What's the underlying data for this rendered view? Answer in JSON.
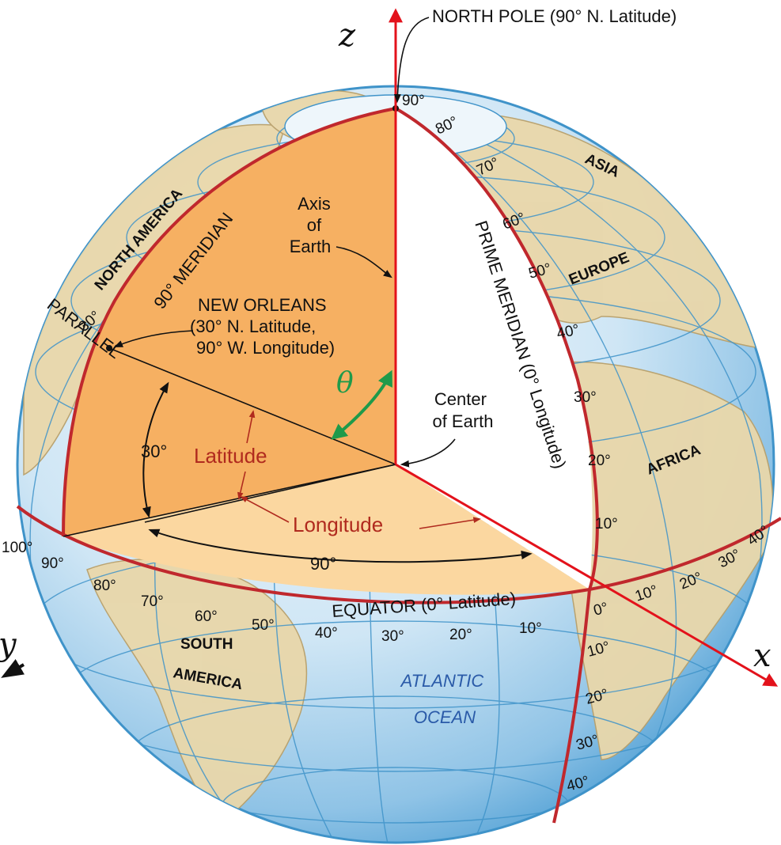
{
  "axes": {
    "z": "z",
    "x": "x",
    "y": "y"
  },
  "north_pole_label": "NORTH POLE (90° N. Latitude)",
  "axis_of_earth": [
    "Axis",
    "of",
    "Earth"
  ],
  "center_of_earth": [
    "Center",
    "of Earth"
  ],
  "meridian_90": "90° MERIDIAN",
  "prime_meridian": "PRIME MERIDIAN (0° Longitude)",
  "parallel_label": "PARALLEL",
  "parallel_deg": "30°",
  "new_orleans": [
    "NEW ORLEANS",
    "(30° N. Latitude,",
    "90° W. Longitude)"
  ],
  "theta": "θ",
  "latitude_label": "Latitude",
  "longitude_label": "Longitude",
  "latitude_angle": "30°",
  "longitude_angle": "90°",
  "equator_label": "EQUATOR (0° Latitude)",
  "continents": {
    "north_america": "NORTH AMERICA",
    "south_america": [
      "SOUTH",
      "AMERICA"
    ],
    "asia": "ASIA",
    "europe": "EUROPE",
    "africa": "AFRICA"
  },
  "ocean": [
    "ATLANTIC",
    "OCEAN"
  ],
  "prime_meridian_latitudes": [
    "90°",
    "80°",
    "70°",
    "60°",
    "50°",
    "40°",
    "30°",
    "20°",
    "10°"
  ],
  "equator_west_longitudes": [
    "100°",
    "90°",
    "80°",
    "70°",
    "60°",
    "50°",
    "40°",
    "30°",
    "20°",
    "10°"
  ],
  "equator_east_longitudes": [
    "0°",
    "10°",
    "20°",
    "30°",
    "40°"
  ],
  "south_latitudes": [
    "10°",
    "20°",
    "30°",
    "40°"
  ],
  "colors": {
    "ocean": "#cfe6f5",
    "land": "#e9d7aa",
    "grid": "#3f93c9",
    "great_circle": "#c0282d",
    "wedge_dark": "#f6b062",
    "wedge_light": "#fbd7a0",
    "axis_arrow": "#e3121b",
    "theta": "#1f9a4a"
  }
}
